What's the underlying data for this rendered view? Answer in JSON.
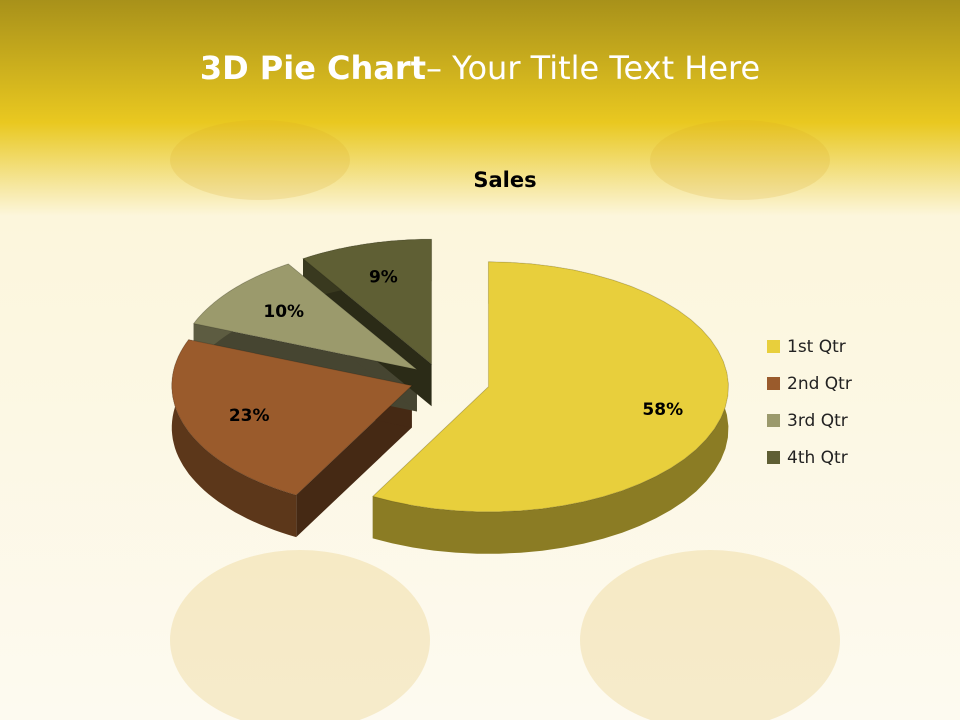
{
  "slide": {
    "title_bold": "3D Pie Chart",
    "title_rest": "– Your Title Text Here"
  },
  "chart_data": {
    "type": "pie",
    "title": "Sales",
    "categories": [
      "1st Qtr",
      "2nd Qtr",
      "3rd Qtr",
      "4th Qtr"
    ],
    "values": [
      58,
      23,
      10,
      9
    ],
    "value_labels": [
      "58%",
      "23%",
      "10%",
      "9%"
    ],
    "colors": [
      "#e8cf3c",
      "#9a5b2c",
      "#9b9a6c",
      "#5f5f34"
    ],
    "legend": "right"
  }
}
